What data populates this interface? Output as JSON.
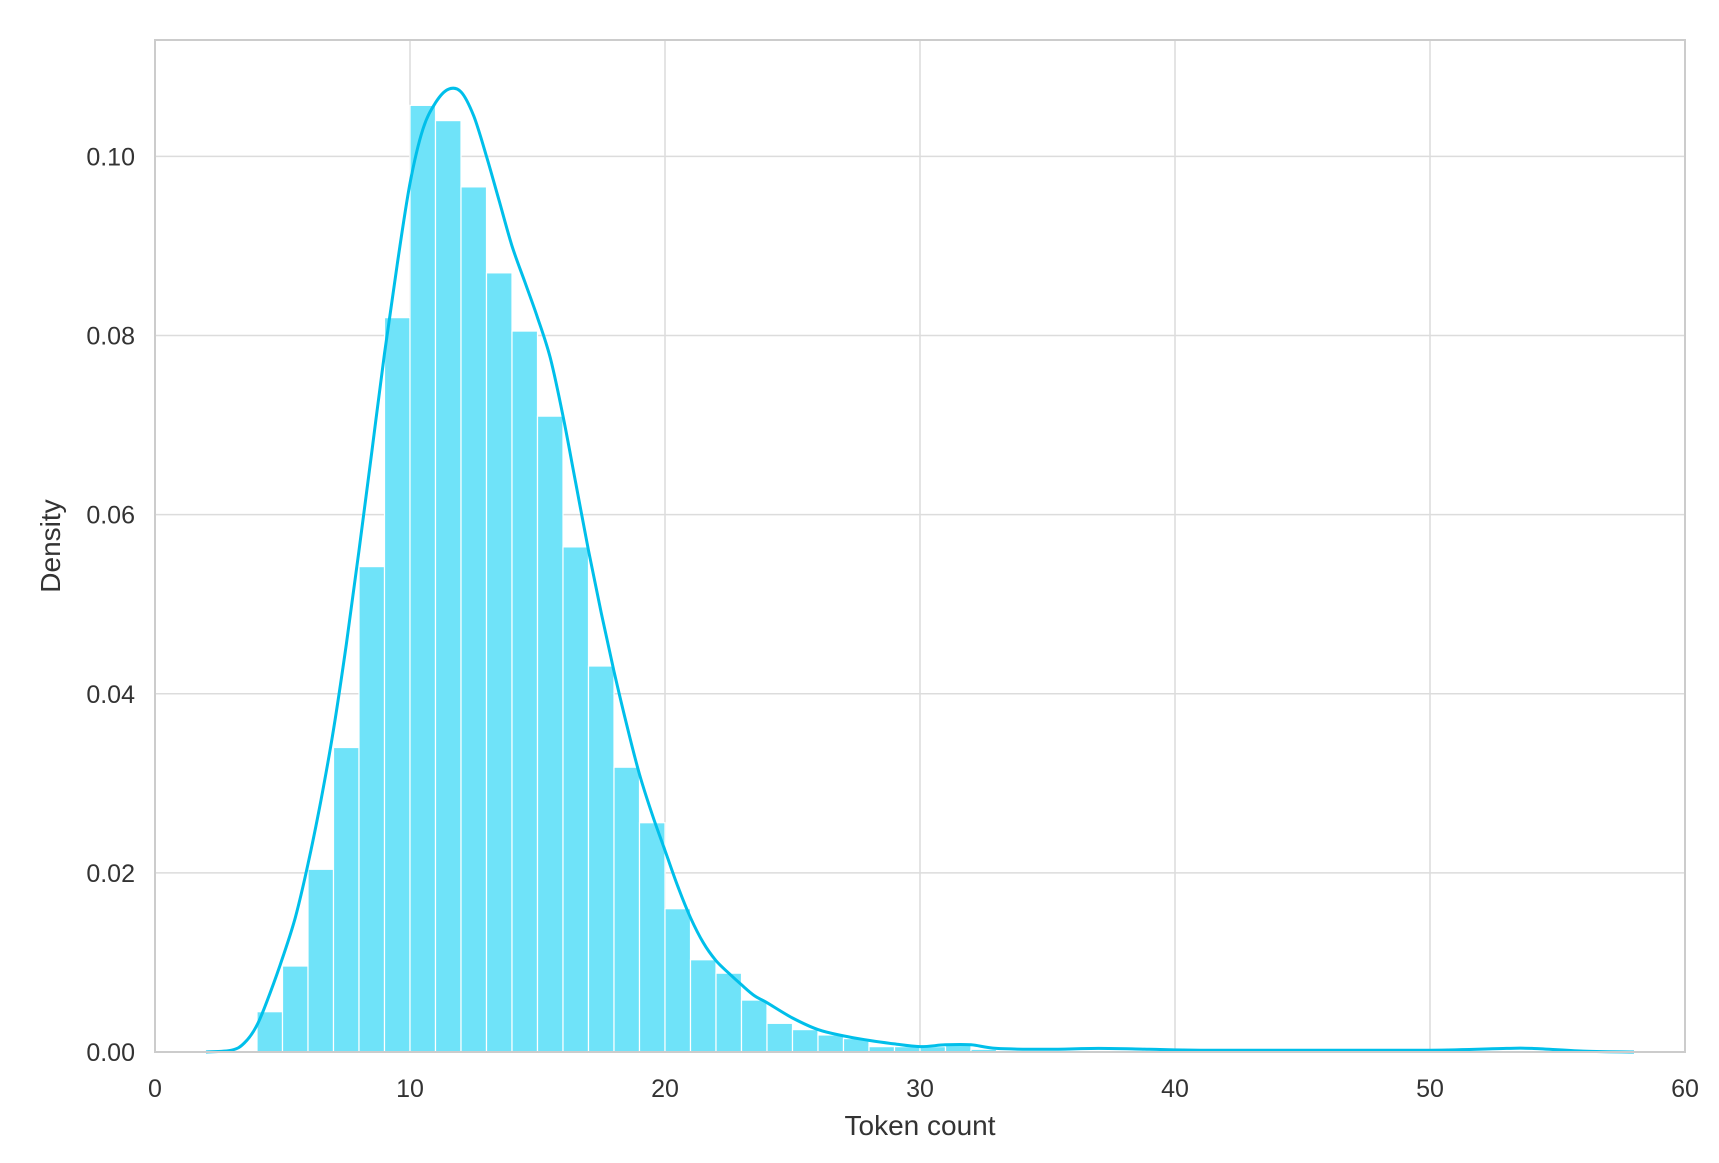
{
  "chart_data": {
    "type": "bar",
    "subtype": "histogram-with-kde",
    "title": "",
    "xlabel": "Token count",
    "ylabel": "Density",
    "xlim": [
      0,
      60
    ],
    "ylim": [
      0,
      0.113
    ],
    "xticks": [
      0,
      10,
      20,
      30,
      40,
      50,
      60
    ],
    "xtick_labels": [
      "0",
      "10",
      "20",
      "30",
      "40",
      "50",
      "60"
    ],
    "yticks": [
      0.0,
      0.02,
      0.04,
      0.06,
      0.08,
      0.1
    ],
    "ytick_labels": [
      "0.00",
      "0.02",
      "0.04",
      "0.06",
      "0.08",
      "0.10"
    ],
    "grid": true,
    "legend": "none",
    "bar_color": "#6fe3f9",
    "line_color": "#00bfea",
    "histogram": {
      "bin_edges": [
        4.0,
        5.0,
        6.0,
        7.0,
        8.0,
        9.0,
        10.0,
        11.0,
        12.0,
        13.0,
        14.0,
        15.0,
        16.0,
        17.0,
        18.0,
        19.0,
        20.0,
        21.0,
        22.0,
        23.0,
        24.0,
        25.0,
        26.0,
        27.0,
        28.0,
        29.0,
        30.0,
        31.0,
        32.0,
        33.0
      ],
      "values": [
        0.0045,
        0.0096,
        0.0204,
        0.034,
        0.0542,
        0.082,
        0.1057,
        0.104,
        0.0966,
        0.087,
        0.0805,
        0.071,
        0.0564,
        0.0431,
        0.0318,
        0.0256,
        0.016,
        0.0103,
        0.0088,
        0.0058,
        0.0032,
        0.0025,
        0.0019,
        0.0015,
        0.0006,
        0.0006,
        0.0006,
        0.0008,
        0.0003
      ]
    },
    "kde": {
      "x": [
        2,
        3,
        3.5,
        4,
        4.5,
        5,
        5.5,
        6,
        6.5,
        7,
        7.5,
        8,
        8.5,
        9,
        9.5,
        10,
        10.5,
        11,
        11.5,
        12,
        12.5,
        13,
        13.5,
        14,
        14.5,
        15,
        15.5,
        16,
        16.5,
        17,
        17.5,
        18,
        18.5,
        19,
        19.5,
        20,
        20.5,
        21,
        21.5,
        22,
        22.5,
        23,
        23.5,
        24,
        25,
        26,
        27,
        28,
        29,
        30,
        31,
        32,
        33,
        35,
        37,
        39,
        41,
        45,
        50,
        53,
        54,
        56,
        58
      ],
      "y": [
        0.0,
        0.0002,
        0.001,
        0.003,
        0.0065,
        0.0105,
        0.015,
        0.021,
        0.028,
        0.036,
        0.0455,
        0.056,
        0.067,
        0.078,
        0.088,
        0.097,
        0.103,
        0.106,
        0.1075,
        0.1072,
        0.1045,
        0.1,
        0.095,
        0.09,
        0.086,
        0.082,
        0.0775,
        0.071,
        0.0635,
        0.056,
        0.049,
        0.0425,
        0.0365,
        0.031,
        0.0265,
        0.0225,
        0.0185,
        0.015,
        0.0122,
        0.0102,
        0.0088,
        0.0075,
        0.0063,
        0.0055,
        0.0038,
        0.0025,
        0.0018,
        0.0013,
        0.0009,
        0.0006,
        0.0008,
        0.0008,
        0.0004,
        0.0003,
        0.0004,
        0.0003,
        0.0002,
        0.0002,
        0.0002,
        0.0004,
        0.0004,
        0.0001,
        0.0
      ]
    }
  }
}
